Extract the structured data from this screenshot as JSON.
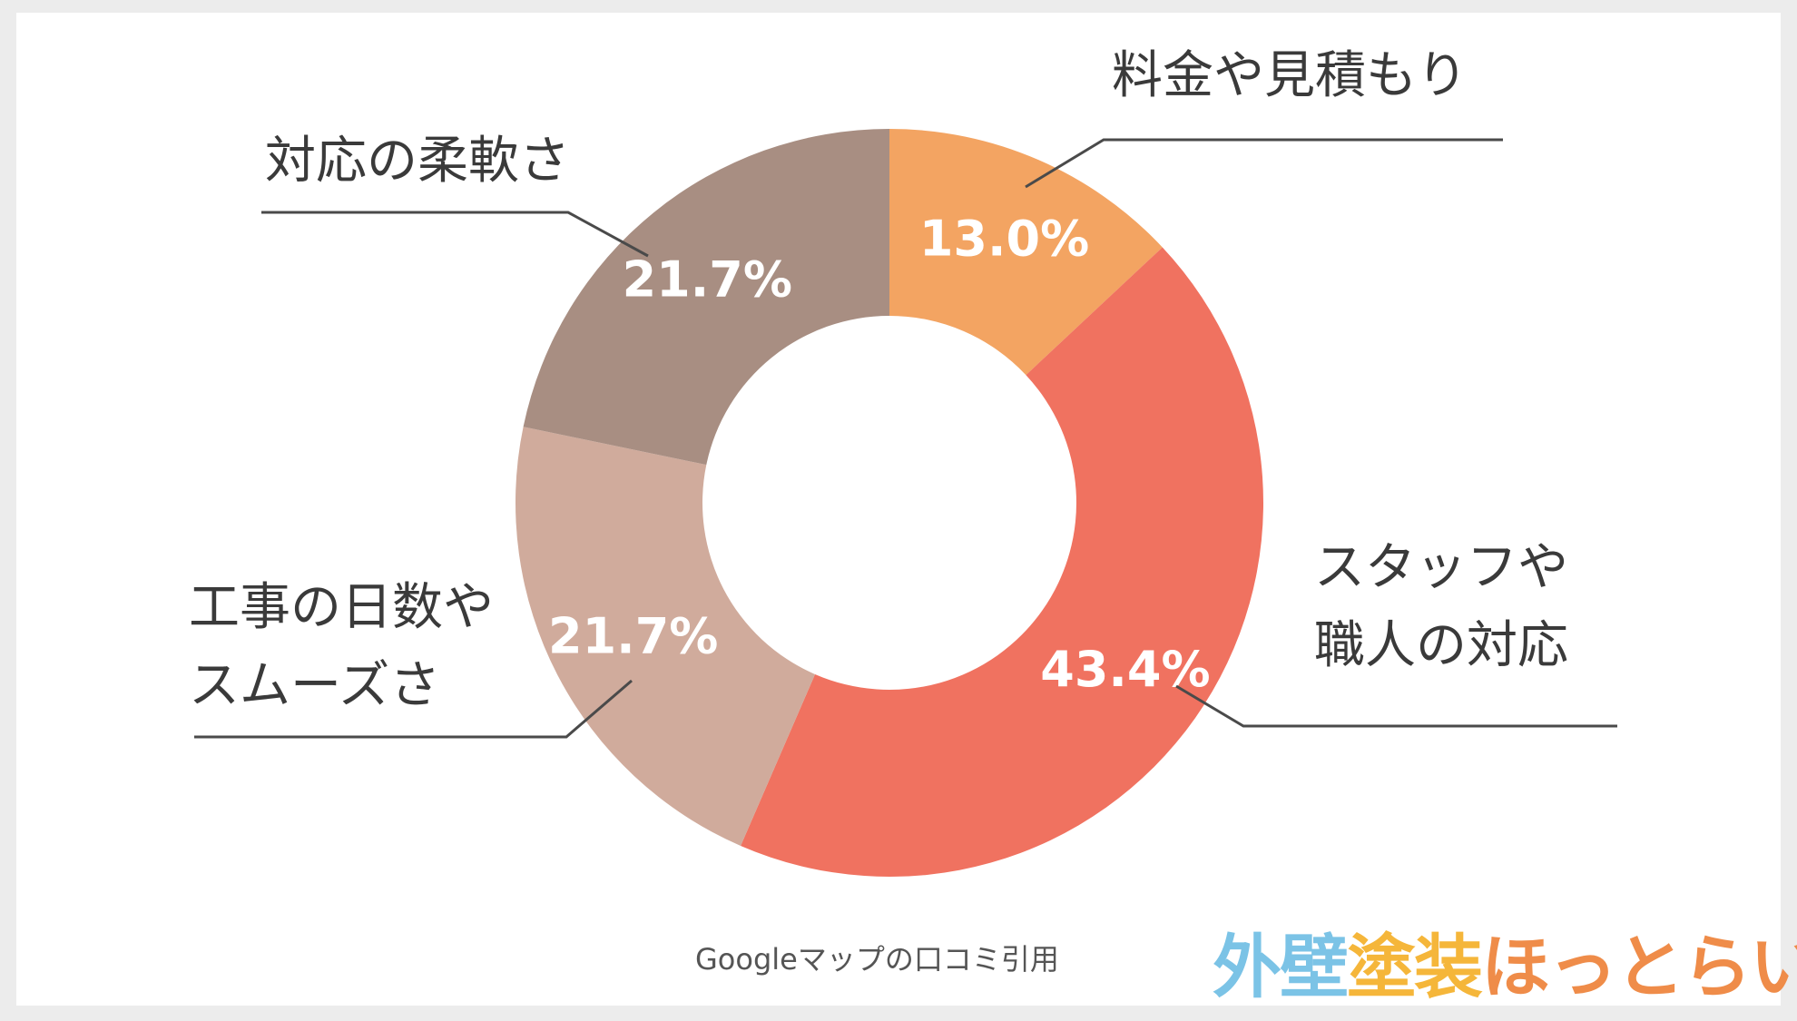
{
  "chart_data": {
    "type": "pie",
    "variant": "donut",
    "title": "",
    "slices": [
      {
        "label": "料金や見積もり",
        "label_lines": [
          "料金や見積もり"
        ],
        "value": 13.0,
        "display": "13.0%",
        "color": "#f3a462"
      },
      {
        "label": "スタッフや職人の対応",
        "label_lines": [
          "スタッフや",
          "職人の対応"
        ],
        "value": 43.4,
        "display": "43.4%",
        "color": "#f07260"
      },
      {
        "label": "工事の日数やスムーズさ",
        "label_lines": [
          "工事の日数や",
          "スムーズさ"
        ],
        "value": 21.7,
        "display": "21.7%",
        "color": "#d0ab9c"
      },
      {
        "label": "対応の柔軟さ",
        "label_lines": [
          "対応の柔軟さ"
        ],
        "value": 21.7,
        "display": "21.7%",
        "color": "#a88e82"
      }
    ],
    "start_angle": "12 o'clock",
    "direction": "clockwise"
  },
  "footer": {
    "source": "Googleマップの口コミ引用"
  },
  "brand": {
    "part1": "外壁",
    "part2": "塗装",
    "part3": "ほっとらいん",
    "colors": [
      "#7bc3e6",
      "#f5b63a",
      "#ef8c49"
    ]
  }
}
